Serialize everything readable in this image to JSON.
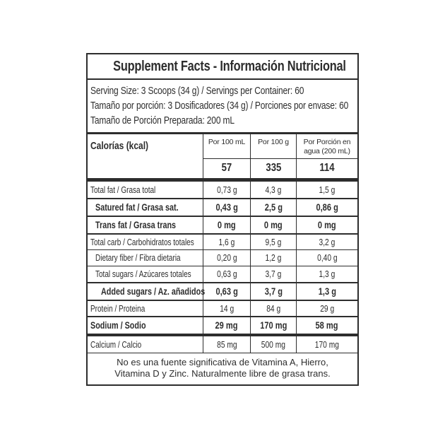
{
  "label": {
    "title": "Supplement Facts - Información Nutricional",
    "serving_lines": [
      "Serving Size: 3 Scoops (34 g) / Servings per Container: 60",
      "Tamaño por porción: 3 Dosificadores (34 g) / Porciones por envase: 60",
      "Tamaño de Porción Preparada: 200 mL"
    ],
    "columns": [
      "Por 100 mL",
      "Por 100 g",
      "Por Porción en agua (200 mL)"
    ],
    "calories": {
      "label": "Calorías (kcal)",
      "values": [
        "57",
        "335",
        "114"
      ]
    },
    "rows": [
      {
        "label": "Total fat / Grasa total",
        "values": [
          "0,73 g",
          "4,3 g",
          "1,5 g"
        ],
        "bold": false,
        "indent": 0,
        "thick_after": false
      },
      {
        "label": "Satured fat / Grasa sat.",
        "values": [
          "0,43 g",
          "2,5 g",
          "0,86 g"
        ],
        "bold": true,
        "indent": 1,
        "thick_after": false
      },
      {
        "label": "Trans fat / Grasa trans",
        "values": [
          "0 mg",
          "0 mg",
          "0 mg"
        ],
        "bold": true,
        "indent": 1,
        "thick_after": false
      },
      {
        "label": "Total carb / Carbohidratos totales",
        "values": [
          "1,6 g",
          "9,5 g",
          "3,2 g"
        ],
        "bold": false,
        "indent": 0,
        "thick_after": false
      },
      {
        "label": "Dietary fiber / Fibra dietaria",
        "values": [
          "0,20 g",
          "1,2 g",
          "0,40 g"
        ],
        "bold": false,
        "indent": 1,
        "thick_after": false
      },
      {
        "label": "Total sugars / Azúcares totales",
        "values": [
          "0,63 g",
          "3,7 g",
          "1,3 g"
        ],
        "bold": false,
        "indent": 1,
        "thick_after": false
      },
      {
        "label": "Added sugars / Az. añadidos",
        "values": [
          "0,63 g",
          "3,7 g",
          "1,3 g"
        ],
        "bold": true,
        "indent": 2,
        "thick_after": false
      },
      {
        "label": "Protein / Proteina",
        "values": [
          "14 g",
          "84 g",
          "29 g"
        ],
        "bold": false,
        "indent": 0,
        "thick_after": false
      },
      {
        "label": "Sodium / Sodio",
        "values": [
          "29 mg",
          "170 mg",
          "58 mg"
        ],
        "bold": true,
        "indent": 0,
        "thick_after": true
      },
      {
        "label": "Calcium / Calcio",
        "values": [
          "85 mg",
          "500 mg",
          "170 mg"
        ],
        "bold": false,
        "indent": 0,
        "thick_after": false
      }
    ],
    "footnote_lines": [
      "No es una fuente significativa de Vitamina A, Hierro,",
      "Vitamina D y Zinc. Naturalmente libre de grasa trans."
    ],
    "colors": {
      "ink": "#2d2d2d",
      "background": "#ffffff"
    }
  }
}
